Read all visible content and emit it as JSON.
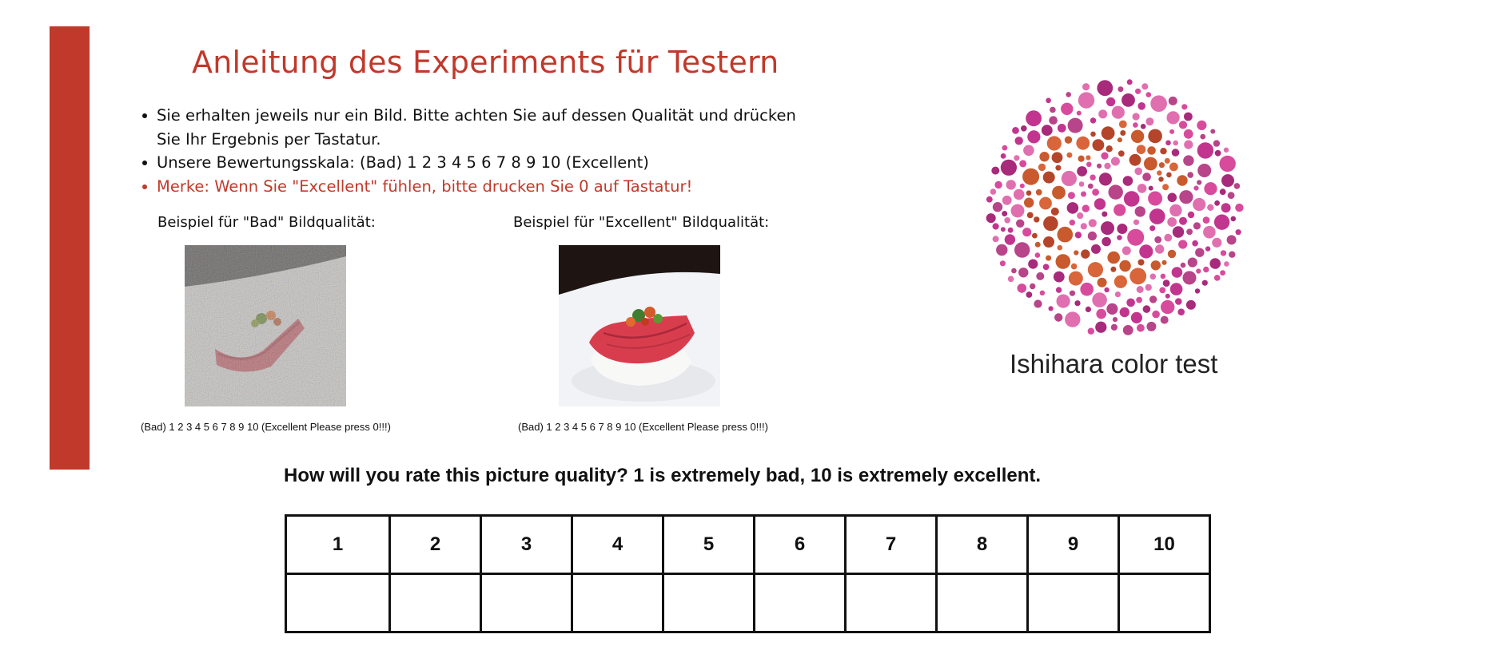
{
  "title": "Anleitung des Experiments für Testern",
  "instructions": {
    "bullet1": "Sie erhalten jeweils nur ein Bild. Bitte achten Sie auf dessen Qualität und drücken Sie Ihr Ergebnis per Tastatur.",
    "bullet2": "Unsere Bewertungsskala: (Bad) 1 2 3 4 5 6 7 8 9 10 (Excellent)",
    "bullet3": "Merke: Wenn Sie \"Excellent\" fühlen, bitte drucken Sie 0 auf Tastatur!"
  },
  "examples": {
    "bad": {
      "caption": "Beispiel für \"Bad\" Bildqualität:",
      "scale_note": "(Bad) 1 2 3 4 5 6 7 8 9 10 (Excellent Please press 0!!!)"
    },
    "excellent": {
      "caption": "Beispiel für \"Excellent\" Bildqualität:",
      "scale_note": "(Bad) 1 2 3 4 5 6 7 8 9 10 (Excellent Please press 0!!!)"
    }
  },
  "ishihara": {
    "label": "Ishihara color test"
  },
  "rating": {
    "question": "How will you rate this picture quality? 1 is extremely bad, 10 is extremely excellent.",
    "options": [
      "1",
      "2",
      "3",
      "4",
      "5",
      "6",
      "7",
      "8",
      "9",
      "10"
    ]
  },
  "colors": {
    "accent": "#c0392b",
    "ishihara_palette": [
      "#c2358f",
      "#d84b9c",
      "#a82a7a",
      "#e06fb0",
      "#b8448a",
      "#c85a2e",
      "#b5452a",
      "#d9653a"
    ]
  }
}
